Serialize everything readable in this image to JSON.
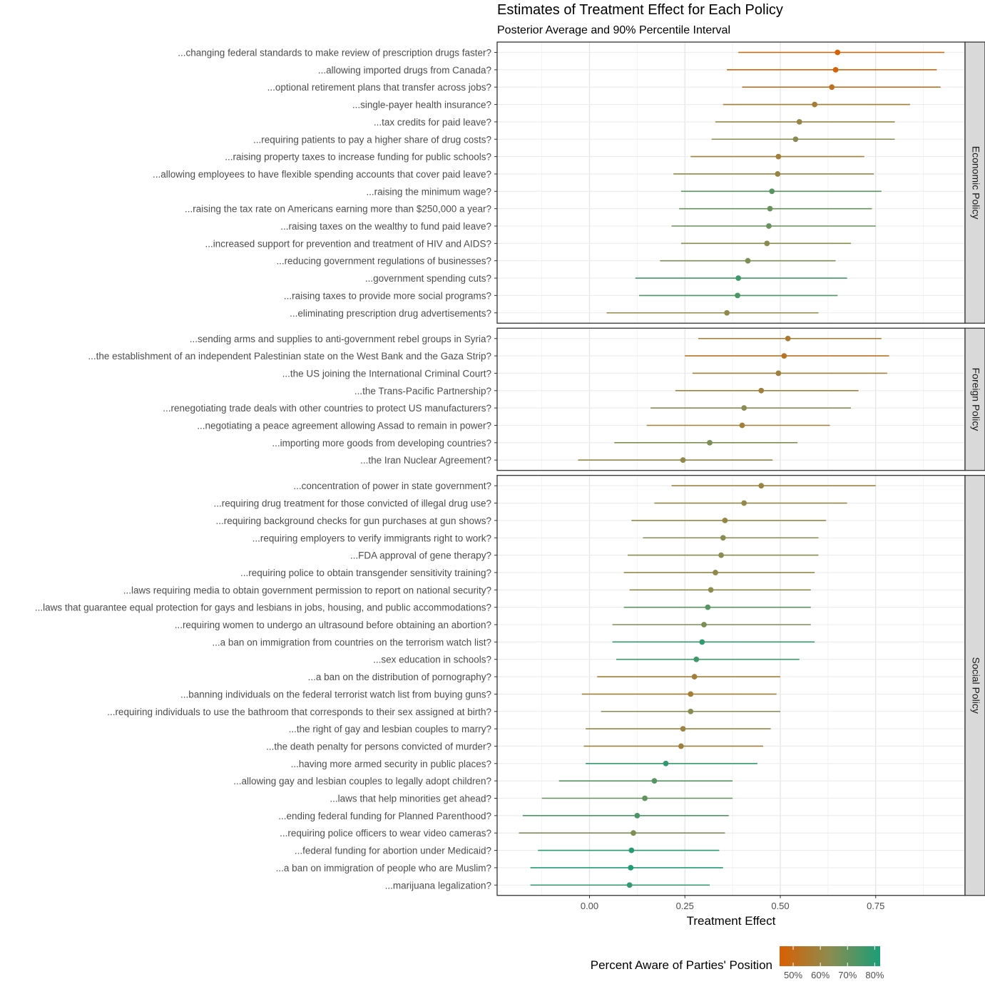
{
  "chart_data": {
    "type": "forest",
    "title": "Estimates of Treatment Effect for Each Policy",
    "subtitle": "Posterior Average and 90% Percentile Interval",
    "xlabel": "Treatment Effect",
    "xlim": [
      -0.24,
      0.98
    ],
    "xticks": [
      0.0,
      0.25,
      0.5,
      0.75
    ],
    "xtick_labels": [
      "0.00",
      "0.25",
      "0.50",
      "0.75"
    ],
    "grid": true,
    "legend": {
      "title": "Percent Aware of Parties' Position",
      "placement": "bottom-right",
      "range": [
        0.45,
        0.82
      ],
      "ticks": [
        0.5,
        0.6,
        0.7,
        0.8
      ],
      "labels": [
        "50%",
        "60%",
        "70%",
        "80%"
      ],
      "low_color": "#d95f02",
      "mid_color": "#8c8c50",
      "high_color": "#1b9e77"
    },
    "panels": [
      {
        "name": "Economic Policy",
        "items": [
          {
            "label": "...changing federal standards to make review of prescription drugs faster?",
            "mean": 0.65,
            "lo": 0.39,
            "hi": 0.93,
            "aware": 0.46
          },
          {
            "label": "...allowing imported drugs from Canada?",
            "mean": 0.645,
            "lo": 0.36,
            "hi": 0.91,
            "aware": 0.47
          },
          {
            "label": "...optional retirement plans that transfer across jobs?",
            "mean": 0.635,
            "lo": 0.4,
            "hi": 0.92,
            "aware": 0.52
          },
          {
            "label": "...single-payer health insurance?",
            "mean": 0.59,
            "lo": 0.35,
            "hi": 0.84,
            "aware": 0.57
          },
          {
            "label": "...tax credits for paid leave?",
            "mean": 0.55,
            "lo": 0.33,
            "hi": 0.8,
            "aware": 0.61
          },
          {
            "label": "...requiring patients to pay a higher share of drug costs?",
            "mean": 0.54,
            "lo": 0.32,
            "hi": 0.8,
            "aware": 0.64
          },
          {
            "label": "...raising property taxes to increase funding for public schools?",
            "mean": 0.495,
            "lo": 0.265,
            "hi": 0.72,
            "aware": 0.58
          },
          {
            "label": "...allowing employees to have flexible spending accounts that cover paid leave?",
            "mean": 0.493,
            "lo": 0.22,
            "hi": 0.745,
            "aware": 0.61
          },
          {
            "label": "...raising the minimum wage?",
            "mean": 0.478,
            "lo": 0.24,
            "hi": 0.765,
            "aware": 0.72
          },
          {
            "label": "...raising the tax rate on Americans earning more than $250,000 a year?",
            "mean": 0.473,
            "lo": 0.235,
            "hi": 0.74,
            "aware": 0.69
          },
          {
            "label": "...raising taxes on the wealthy to fund paid leave?",
            "mean": 0.47,
            "lo": 0.215,
            "hi": 0.75,
            "aware": 0.69
          },
          {
            "label": "...increased support for prevention and treatment of HIV and AIDS?",
            "mean": 0.465,
            "lo": 0.24,
            "hi": 0.685,
            "aware": 0.64
          },
          {
            "label": "...reducing government regulations of businesses?",
            "mean": 0.415,
            "lo": 0.185,
            "hi": 0.645,
            "aware": 0.66
          },
          {
            "label": "...government spending cuts?",
            "mean": 0.39,
            "lo": 0.12,
            "hi": 0.675,
            "aware": 0.76
          },
          {
            "label": "...raising taxes to provide more social programs?",
            "mean": 0.388,
            "lo": 0.13,
            "hi": 0.65,
            "aware": 0.74
          },
          {
            "label": "...eliminating prescription drug advertisements?",
            "mean": 0.36,
            "lo": 0.045,
            "hi": 0.6,
            "aware": 0.62
          }
        ]
      },
      {
        "name": "Foreign Policy",
        "items": [
          {
            "label": "...sending arms and supplies to anti-government rebel groups in Syria?",
            "mean": 0.52,
            "lo": 0.285,
            "hi": 0.765,
            "aware": 0.56
          },
          {
            "label": "...the establishment of an independent Palestinian state on the West Bank and the Gaza Strip?",
            "mean": 0.51,
            "lo": 0.25,
            "hi": 0.785,
            "aware": 0.53
          },
          {
            "label": "...the US joining the International Criminal Court?",
            "mean": 0.495,
            "lo": 0.27,
            "hi": 0.78,
            "aware": 0.59
          },
          {
            "label": "...the Trans-Pacific Partnership?",
            "mean": 0.45,
            "lo": 0.225,
            "hi": 0.705,
            "aware": 0.59
          },
          {
            "label": "...renegotiating trade deals with other countries to protect US manufacturers?",
            "mean": 0.405,
            "lo": 0.16,
            "hi": 0.685,
            "aware": 0.64
          },
          {
            "label": "...negotiating a peace agreement allowing Assad to remain in power?",
            "mean": 0.4,
            "lo": 0.15,
            "hi": 0.63,
            "aware": 0.58
          },
          {
            "label": "...importing more goods from developing countries?",
            "mean": 0.315,
            "lo": 0.065,
            "hi": 0.545,
            "aware": 0.66
          },
          {
            "label": "...the Iran Nuclear Agreement?",
            "mean": 0.245,
            "lo": -0.03,
            "hi": 0.48,
            "aware": 0.62
          }
        ]
      },
      {
        "name": "Social Policy",
        "items": [
          {
            "label": "...concentration of power in state government?",
            "mean": 0.45,
            "lo": 0.215,
            "hi": 0.75,
            "aware": 0.6
          },
          {
            "label": "...requiring drug treatment for those convicted of illegal drug use?",
            "mean": 0.405,
            "lo": 0.17,
            "hi": 0.675,
            "aware": 0.62
          },
          {
            "label": "...requiring background checks for gun purchases at gun shows?",
            "mean": 0.355,
            "lo": 0.11,
            "hi": 0.62,
            "aware": 0.61
          },
          {
            "label": "...requiring employers to verify immigrants right to work?",
            "mean": 0.35,
            "lo": 0.14,
            "hi": 0.6,
            "aware": 0.64
          },
          {
            "label": "...FDA approval of gene therapy?",
            "mean": 0.345,
            "lo": 0.1,
            "hi": 0.6,
            "aware": 0.64
          },
          {
            "label": "...requiring police to obtain transgender sensitivity training?",
            "mean": 0.33,
            "lo": 0.09,
            "hi": 0.59,
            "aware": 0.62
          },
          {
            "label": "...laws requiring media to obtain government permission to report on national security?",
            "mean": 0.318,
            "lo": 0.105,
            "hi": 0.58,
            "aware": 0.63
          },
          {
            "label": "...laws that guarantee equal protection for gays and lesbians in jobs, housing, and public accommodations?",
            "mean": 0.31,
            "lo": 0.09,
            "hi": 0.58,
            "aware": 0.72
          },
          {
            "label": "...requiring women to undergo an ultrasound before obtaining an abortion?",
            "mean": 0.3,
            "lo": 0.06,
            "hi": 0.58,
            "aware": 0.66
          },
          {
            "label": "...a ban on immigration from countries on the terrorism watch list?",
            "mean": 0.295,
            "lo": 0.06,
            "hi": 0.59,
            "aware": 0.78
          },
          {
            "label": "...sex education in schools?",
            "mean": 0.28,
            "lo": 0.07,
            "hi": 0.55,
            "aware": 0.76
          },
          {
            "label": "...a ban on the distribution of pornography?",
            "mean": 0.275,
            "lo": 0.02,
            "hi": 0.5,
            "aware": 0.58
          },
          {
            "label": "...banning individuals on the federal terrorist watch list from buying guns?",
            "mean": 0.265,
            "lo": -0.02,
            "hi": 0.49,
            "aware": 0.57
          },
          {
            "label": "...requiring individuals to use the bathroom that corresponds to their sex assigned at birth?",
            "mean": 0.265,
            "lo": 0.03,
            "hi": 0.5,
            "aware": 0.64
          },
          {
            "label": "...the right of gay and lesbian couples to marry?",
            "mean": 0.245,
            "lo": -0.01,
            "hi": 0.475,
            "aware": 0.6
          },
          {
            "label": "...the death penalty for persons convicted of murder?",
            "mean": 0.24,
            "lo": -0.015,
            "hi": 0.455,
            "aware": 0.59
          },
          {
            "label": "...having more armed security in public places?",
            "mean": 0.2,
            "lo": -0.01,
            "hi": 0.44,
            "aware": 0.78
          },
          {
            "label": "...allowing gay and lesbian couples to legally adopt children?",
            "mean": 0.17,
            "lo": -0.08,
            "hi": 0.375,
            "aware": 0.72
          },
          {
            "label": "...laws that help minorities get ahead?",
            "mean": 0.145,
            "lo": -0.125,
            "hi": 0.375,
            "aware": 0.7
          },
          {
            "label": "...ending federal funding for Planned Parenthood?",
            "mean": 0.125,
            "lo": -0.175,
            "hi": 0.365,
            "aware": 0.74
          },
          {
            "label": "...requiring police officers to wear video cameras?",
            "mean": 0.115,
            "lo": -0.185,
            "hi": 0.355,
            "aware": 0.66
          },
          {
            "label": "...federal funding for abortion under Medicaid?",
            "mean": 0.11,
            "lo": -0.135,
            "hi": 0.34,
            "aware": 0.8
          },
          {
            "label": "...a ban on immigration of people who are Muslim?",
            "mean": 0.108,
            "lo": -0.155,
            "hi": 0.35,
            "aware": 0.81
          },
          {
            "label": "...marijuana legalization?",
            "mean": 0.105,
            "lo": -0.155,
            "hi": 0.315,
            "aware": 0.78
          }
        ]
      }
    ]
  }
}
